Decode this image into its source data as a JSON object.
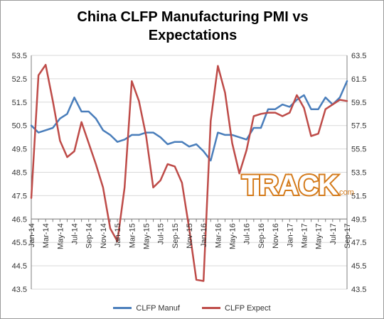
{
  "chart_data": {
    "type": "line",
    "title_line1": "China CLFP Manufacturing PMI vs",
    "title_line2": "Expectations",
    "categories": [
      "Jan-14",
      "Feb-14",
      "Mar-14",
      "Apr-14",
      "May-14",
      "Jun-14",
      "Jul-14",
      "Aug-14",
      "Sep-14",
      "Oct-14",
      "Nov-14",
      "Dec-14",
      "Jan-15",
      "Feb-15",
      "Mar-15",
      "Apr-15",
      "May-15",
      "Jun-15",
      "Jul-15",
      "Aug-15",
      "Sep-15",
      "Oct-15",
      "Nov-15",
      "Dec-15",
      "Jan-16",
      "Feb-16",
      "Mar-16",
      "Apr-16",
      "May-16",
      "Jun-16",
      "Jul-16",
      "Aug-16",
      "Sep-16",
      "Oct-16",
      "Nov-16",
      "Dec-16",
      "Jan-17",
      "Feb-17",
      "Mar-17",
      "Apr-17",
      "May-17",
      "Jun-17",
      "Jul-17",
      "Aug-17",
      "Sep-17"
    ],
    "x_tick_labels": [
      "Jan-14",
      "Mar-14",
      "May-14",
      "Jul-14",
      "Sep-14",
      "Nov-14",
      "Jan-15",
      "Mar-15",
      "May-15",
      "Jul-15",
      "Sep-15",
      "Nov-15",
      "Jan-16",
      "Mar-16",
      "May-16",
      "Jul-16",
      "Sep-16",
      "Nov-16",
      "Jan-17",
      "Mar-17",
      "May-17",
      "Jul-17",
      "Sep-17"
    ],
    "y_left": {
      "ticks": [
        53.5,
        52.5,
        51.5,
        50.5,
        49.5,
        48.5,
        47.5,
        46.5,
        45.5,
        44.5,
        43.5
      ],
      "ylim": [
        43.5,
        53.5
      ]
    },
    "y_right": {
      "ticks": [
        63.5,
        61.5,
        59.5,
        57.5,
        55.5,
        53.5,
        51.5,
        49.5,
        47.5,
        45.5,
        43.5
      ],
      "ylim": [
        43.5,
        63.5
      ]
    },
    "series": [
      {
        "name": "CLFP Manuf",
        "axis": "left",
        "color": "#4a7ebb",
        "values": [
          50.5,
          50.2,
          50.3,
          50.4,
          50.8,
          51.0,
          51.7,
          51.1,
          51.1,
          50.8,
          50.3,
          50.1,
          49.8,
          49.9,
          50.1,
          50.1,
          50.2,
          50.2,
          50.0,
          49.7,
          49.8,
          49.8,
          49.6,
          49.7,
          49.4,
          49.0,
          50.2,
          50.1,
          50.1,
          50.0,
          49.9,
          50.4,
          50.4,
          51.2,
          51.2,
          51.4,
          51.3,
          51.6,
          51.8,
          51.2,
          51.2,
          51.7,
          51.4,
          51.7,
          52.4
        ]
      },
      {
        "name": "CLFP Expect",
        "axis": "right",
        "color": "#be4b48",
        "values": [
          51.3,
          61.8,
          62.7,
          59.6,
          56.2,
          54.8,
          55.3,
          57.8,
          56.0,
          54.2,
          52.2,
          48.7,
          47.6,
          52.2,
          61.3,
          59.6,
          56.6,
          52.2,
          52.8,
          54.2,
          54.0,
          52.6,
          48.7,
          44.3,
          44.2,
          57.9,
          62.6,
          60.3,
          56.0,
          53.4,
          55.4,
          58.3,
          58.5,
          58.6,
          58.6,
          58.3,
          58.6,
          60.1,
          59.0,
          56.6,
          56.8,
          58.9,
          59.3,
          59.7,
          59.6
        ]
      }
    ],
    "grid": "horizontal",
    "legend_position": "bottom"
  },
  "logo": {
    "text": "TRACK",
    "suffix": ".com",
    "color": "#d47a1a"
  },
  "colors": {
    "axis": "#7f7f7f",
    "grid": "#d9d9d9",
    "text": "#333333"
  }
}
